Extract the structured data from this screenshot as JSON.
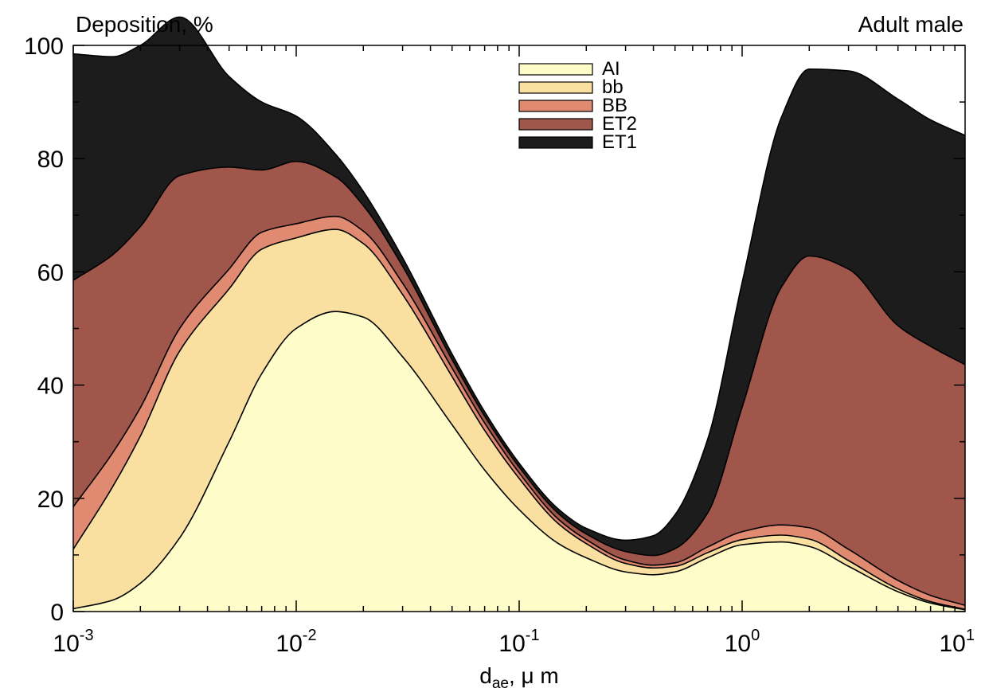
{
  "chart_data": {
    "type": "area",
    "stacked": true,
    "title": "Adult male",
    "ylabel": "Deposition, %",
    "xlabel": {
      "base": "d",
      "subscript": "ae",
      "unit": ", μ m"
    },
    "x_scale": "log",
    "xlim": [
      0.001,
      10
    ],
    "ylim": [
      0,
      100
    ],
    "grid": false,
    "legend_position": "top-center",
    "x_ticks": [
      {
        "value": 0.001,
        "base": "10",
        "exp": "-3"
      },
      {
        "value": 0.01,
        "base": "10",
        "exp": "-2"
      },
      {
        "value": 0.1,
        "base": "10",
        "exp": "-1"
      },
      {
        "value": 1,
        "base": "10",
        "exp": "0"
      },
      {
        "value": 10,
        "base": "10",
        "exp": "1"
      }
    ],
    "y_ticks": [
      0,
      20,
      40,
      60,
      80,
      100
    ],
    "x": [
      0.001,
      0.0015,
      0.002,
      0.003,
      0.005,
      0.007,
      0.01,
      0.015,
      0.02,
      0.03,
      0.05,
      0.07,
      0.1,
      0.15,
      0.2,
      0.3,
      0.4,
      0.5,
      0.7,
      1,
      1.5,
      2,
      3,
      5,
      7,
      10
    ],
    "series": [
      {
        "name": "AI",
        "color": "#fefcc8",
        "values": [
          0.5,
          2,
          5,
          13,
          30,
          42,
          50,
          53,
          52,
          45,
          33,
          25,
          18,
          12,
          9.5,
          7,
          6.5,
          7,
          9.5,
          11.8,
          12.3,
          11.5,
          8,
          3.5,
          1.5,
          0.3
        ]
      },
      {
        "name": "bb",
        "color": "#f9e0a0",
        "values": [
          10.5,
          20,
          26,
          33,
          27,
          22,
          16,
          14.5,
          13,
          11,
          8.5,
          7,
          5.5,
          3.5,
          2.5,
          1.5,
          1.2,
          1,
          0.9,
          0.9,
          1.2,
          1.3,
          1,
          0.5,
          0.25,
          0.1
        ]
      },
      {
        "name": "BB",
        "color": "#e08a72",
        "values": [
          7.5,
          6,
          5,
          4,
          3.5,
          3,
          2.5,
          2.3,
          2.2,
          2,
          1.5,
          1.3,
          1,
          0.8,
          0.7,
          0.6,
          0.5,
          0.6,
          1,
          1.4,
          1.8,
          2,
          2,
          1.5,
          1.1,
          0.7
        ]
      },
      {
        "name": "ET2",
        "color": "#a0564a",
        "values": [
          40,
          35,
          32,
          27,
          18,
          11,
          11,
          7,
          4.5,
          3,
          1.5,
          1.2,
          1,
          1,
          1,
          1.5,
          1.7,
          2.5,
          6,
          22,
          42,
          48,
          49.5,
          45,
          44,
          42.5
        ]
      },
      {
        "name": "ET1",
        "color": "#1c1c1c",
        "values": [
          40,
          35,
          32,
          28,
          16,
          12,
          8,
          4,
          2.5,
          1.5,
          1,
          0.8,
          0.7,
          0.8,
          1,
          2,
          3.5,
          6,
          13,
          22,
          30,
          33,
          35,
          40,
          40,
          40.5
        ]
      }
    ]
  }
}
